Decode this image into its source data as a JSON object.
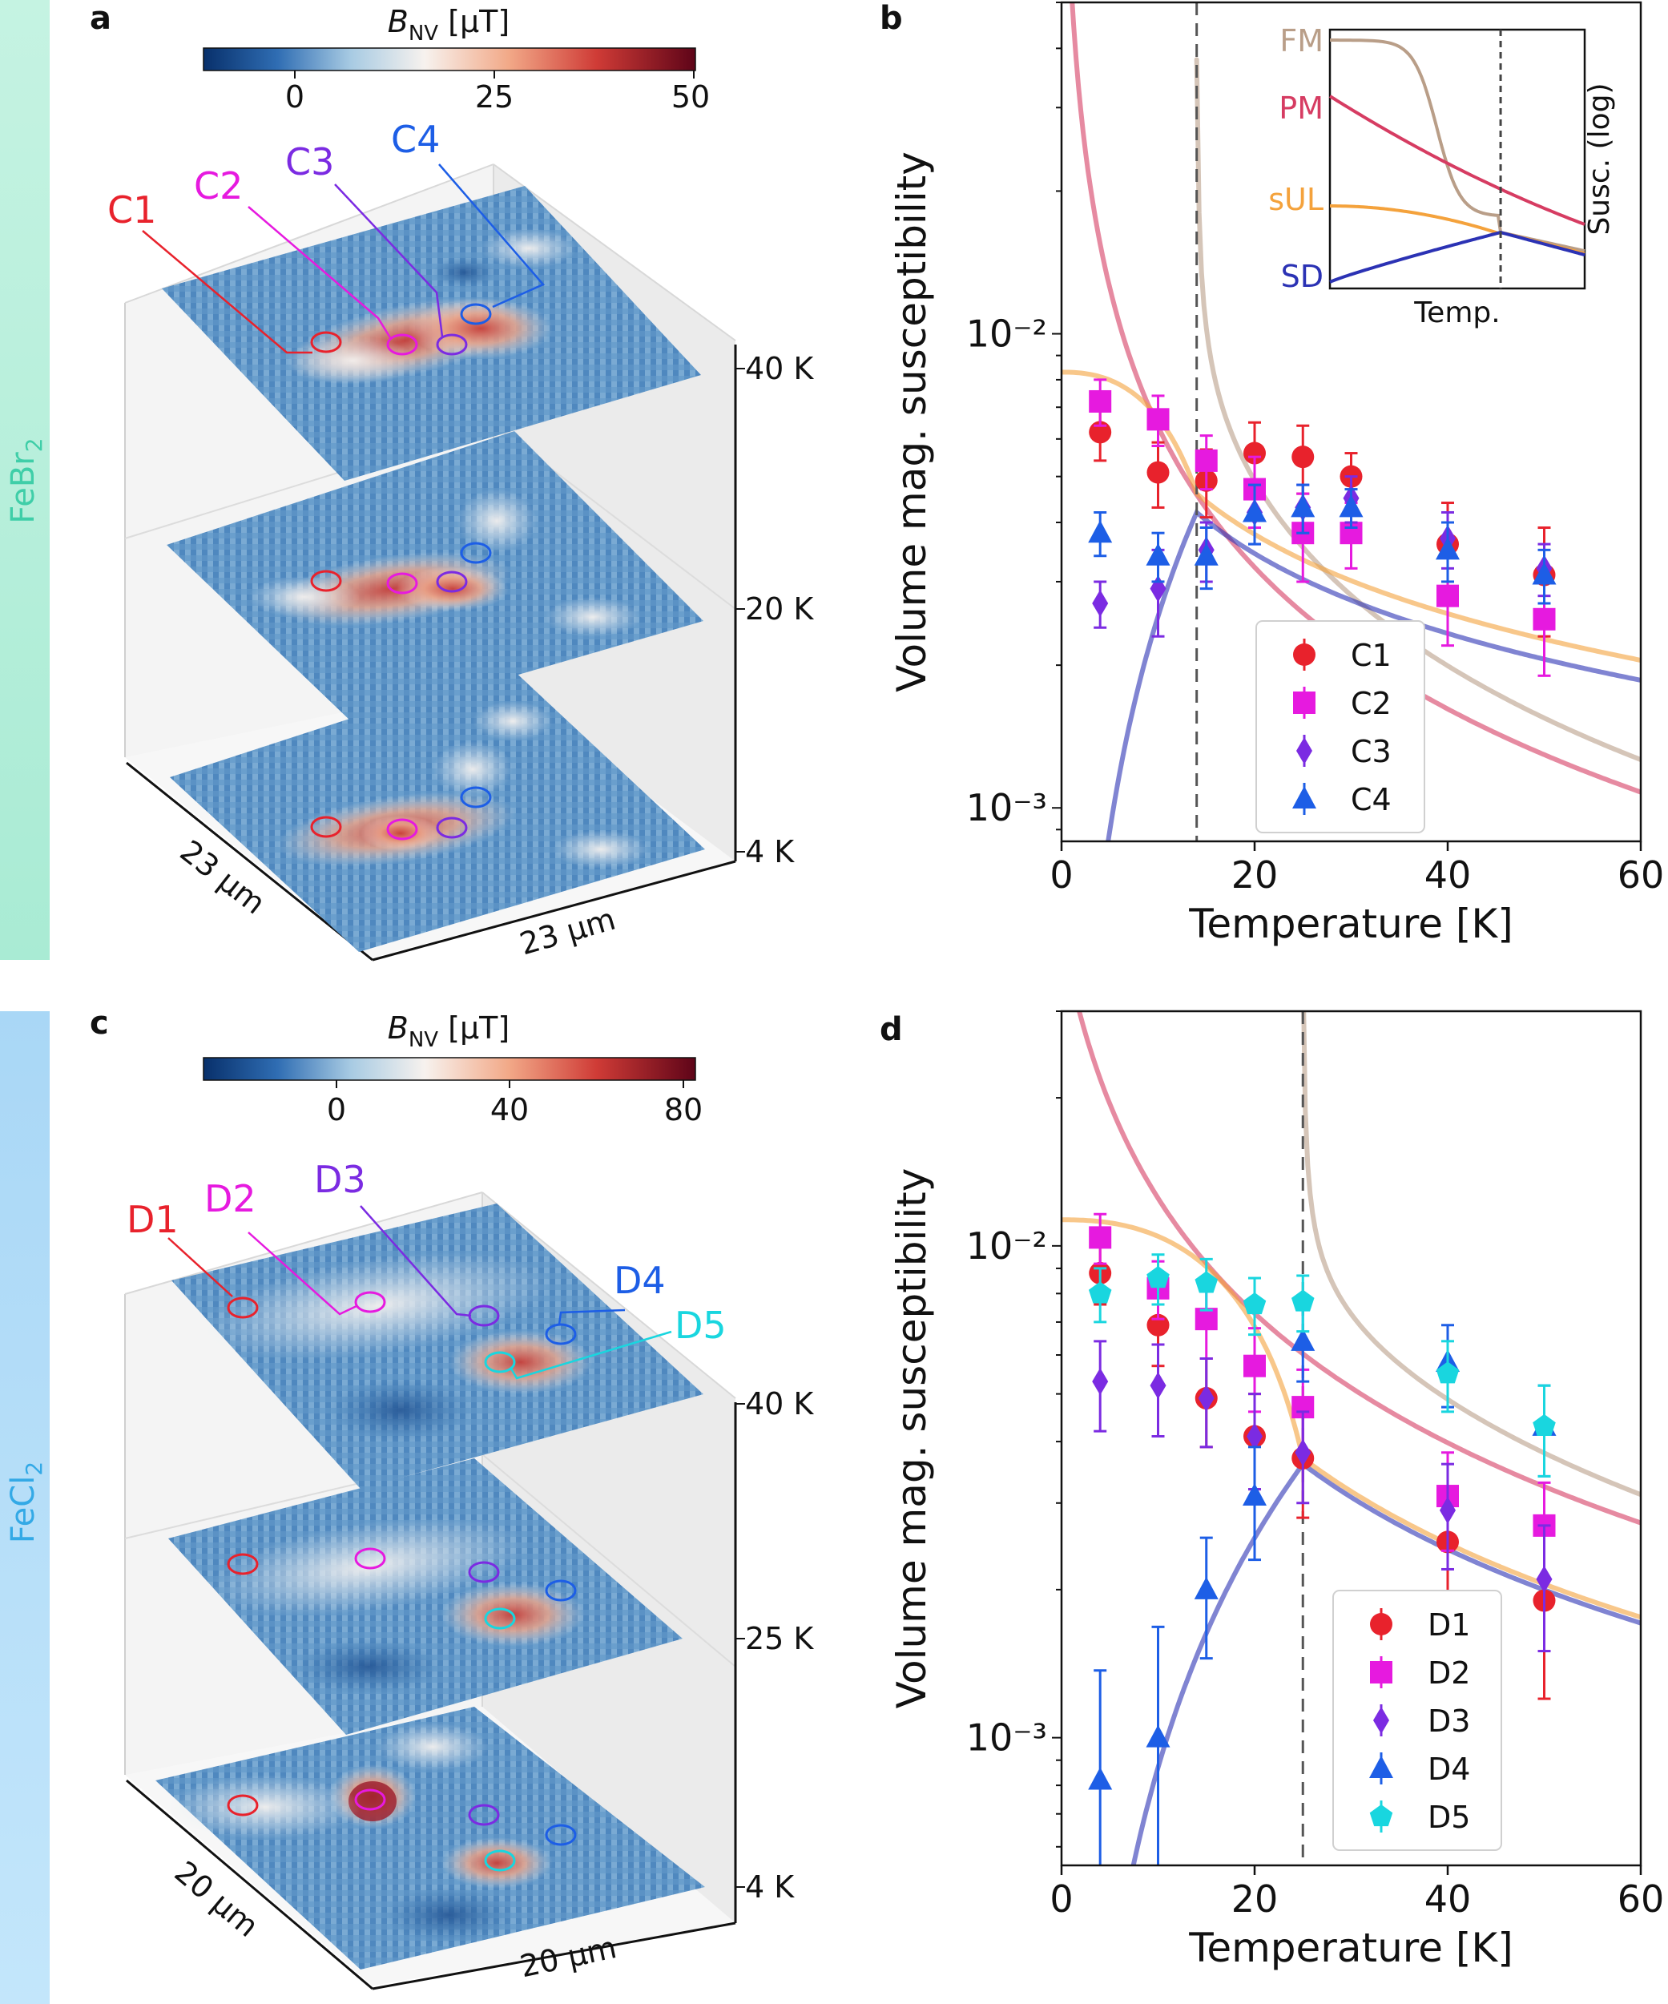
{
  "colors": {
    "C1": "#e8222c",
    "C2": "#e61adf",
    "C3": "#7b2be2",
    "C4": "#1d5ee6",
    "D1": "#e8222c",
    "D2": "#e61adf",
    "D3": "#7b2be2",
    "D4": "#1d5ee6",
    "D5": "#19d6df",
    "FM": "#b99e88",
    "PM": "#d63c62",
    "sUL": "#f4a23c",
    "SD": "#2b32b4",
    "band_top": "#b9f0dc",
    "band_bottom": "#b3dcf7"
  },
  "panels": {
    "a": {
      "letter": "a",
      "material": "FeBr",
      "subscript": "2",
      "colorbar": {
        "label_main": "B",
        "label_sub": "NV",
        "label_unit": " [μT]",
        "ticks": [
          "0",
          "25",
          "50"
        ]
      },
      "layers": [
        "40 K",
        "20 K",
        "4 K"
      ],
      "dim_left": "23 μm",
      "dim_right": "23 μm",
      "callouts": [
        "C1",
        "C2",
        "C3",
        "C4"
      ]
    },
    "c": {
      "letter": "c",
      "material": "FeCl",
      "subscript": "2",
      "colorbar": {
        "label_main": "B",
        "label_sub": "NV",
        "label_unit": " [μT]",
        "ticks": [
          "0",
          "40",
          "80"
        ]
      },
      "layers": [
        "40 K",
        "25 K",
        "4 K"
      ],
      "dim_left": "20 μm",
      "dim_right": "20 μm",
      "callouts": [
        "D1",
        "D2",
        "D3",
        "D4",
        "D5"
      ]
    }
  },
  "chart_data": [
    {
      "panel": "b",
      "type": "scatter",
      "yscale": "log",
      "xlabel": "Temperature [K]",
      "ylabel": "Volume mag. susceptibility",
      "xlim": [
        0,
        60
      ],
      "ylim": [
        0.00085,
        0.05
      ],
      "xticks": [
        "0",
        "20",
        "40",
        "60"
      ],
      "yticks": [
        "10⁻²",
        "10⁻³"
      ],
      "transition_T": 14,
      "inset": {
        "xlabel": "Temp.",
        "ylabel": "Susc. (log)",
        "labels": [
          "FM",
          "PM",
          "sUL",
          "SD"
        ]
      },
      "series": [
        {
          "name": "C1",
          "marker": "circle",
          "x": [
            4,
            10,
            15,
            20,
            25,
            30,
            40,
            50
          ],
          "y": [
            0.0062,
            0.0051,
            0.0049,
            0.0056,
            0.0055,
            0.005,
            0.0036,
            0.0031
          ],
          "err": [
            0.0008,
            0.0008,
            0.0008,
            0.0009,
            0.0009,
            0.0006,
            0.0008,
            0.0008
          ]
        },
        {
          "name": "C2",
          "marker": "square",
          "x": [
            4,
            10,
            15,
            20,
            25,
            30,
            40,
            50
          ],
          "y": [
            0.0072,
            0.0066,
            0.0054,
            0.0047,
            0.0038,
            0.0038,
            0.0028,
            0.0025
          ],
          "err": [
            0.0008,
            0.0008,
            0.0007,
            0.0008,
            0.0008,
            0.0006,
            0.0006,
            0.0006
          ]
        },
        {
          "name": "C3",
          "marker": "diamond",
          "x": [
            4,
            10,
            15,
            20,
            25,
            30,
            40,
            50
          ],
          "y": [
            0.0027,
            0.0029,
            0.0035,
            0.0042,
            0.0043,
            0.0045,
            0.0037,
            0.0032
          ],
          "err": [
            0.0003,
            0.0006,
            0.0005,
            0.0006,
            0.0005,
            0.0005,
            0.0005,
            0.0004
          ]
        },
        {
          "name": "C4",
          "marker": "triangle",
          "x": [
            4,
            10,
            15,
            20,
            25,
            30,
            40,
            50
          ],
          "y": [
            0.0038,
            0.0034,
            0.0034,
            0.0042,
            0.0043,
            0.0043,
            0.0035,
            0.0031
          ],
          "err": [
            0.0004,
            0.0004,
            0.0005,
            0.0006,
            0.0005,
            0.0004,
            0.0005,
            0.0004
          ]
        }
      ]
    },
    {
      "panel": "d",
      "type": "scatter",
      "yscale": "log",
      "xlabel": "Temperature [K]",
      "ylabel": "Volume mag. susceptibility",
      "xlim": [
        0,
        60
      ],
      "ylim": [
        0.00055,
        0.03
      ],
      "xticks": [
        "0",
        "20",
        "40",
        "60"
      ],
      "yticks": [
        "10⁻²",
        "10⁻³"
      ],
      "transition_T": 25,
      "series": [
        {
          "name": "D1",
          "marker": "circle",
          "x": [
            4,
            10,
            15,
            20,
            25,
            40,
            50
          ],
          "y": [
            0.0088,
            0.0069,
            0.0049,
            0.0041,
            0.0037,
            0.0025,
            0.0019
          ],
          "err": [
            0.0012,
            0.0012,
            0.001,
            0.0009,
            0.0009,
            0.0006,
            0.0007
          ]
        },
        {
          "name": "D2",
          "marker": "square",
          "x": [
            4,
            10,
            15,
            20,
            25,
            40,
            50
          ],
          "y": [
            0.0104,
            0.0082,
            0.0071,
            0.0057,
            0.0047,
            0.0031,
            0.0027
          ],
          "err": [
            0.0012,
            0.0011,
            0.0012,
            0.0011,
            0.0009,
            0.0007,
            0.0006
          ]
        },
        {
          "name": "D3",
          "marker": "diamond",
          "x": [
            4,
            10,
            15,
            20,
            25,
            40,
            50
          ],
          "y": [
            0.0053,
            0.0052,
            0.0049,
            0.0041,
            0.0038,
            0.0029,
            0.0021
          ],
          "err": [
            0.0011,
            0.0011,
            0.001,
            0.0009,
            0.0008,
            0.0007,
            0.0006
          ]
        },
        {
          "name": "D4",
          "marker": "triangle",
          "x": [
            4,
            10,
            15,
            20,
            25,
            40,
            50
          ],
          "y": [
            0.00082,
            0.001,
            0.002,
            0.0031,
            0.0064,
            0.0058,
            0.0043
          ],
          "err": [
            0.00055,
            0.00068,
            0.00055,
            0.0008,
            0.0011,
            0.0011,
            0.0009
          ]
        },
        {
          "name": "D5",
          "marker": "pentagon",
          "x": [
            4,
            10,
            15,
            20,
            25,
            40,
            50
          ],
          "y": [
            0.008,
            0.0086,
            0.0084,
            0.0076,
            0.0077,
            0.0055,
            0.0043
          ],
          "err": [
            0.001,
            0.001,
            0.001,
            0.001,
            0.001,
            0.0009,
            0.0009
          ]
        }
      ]
    }
  ]
}
